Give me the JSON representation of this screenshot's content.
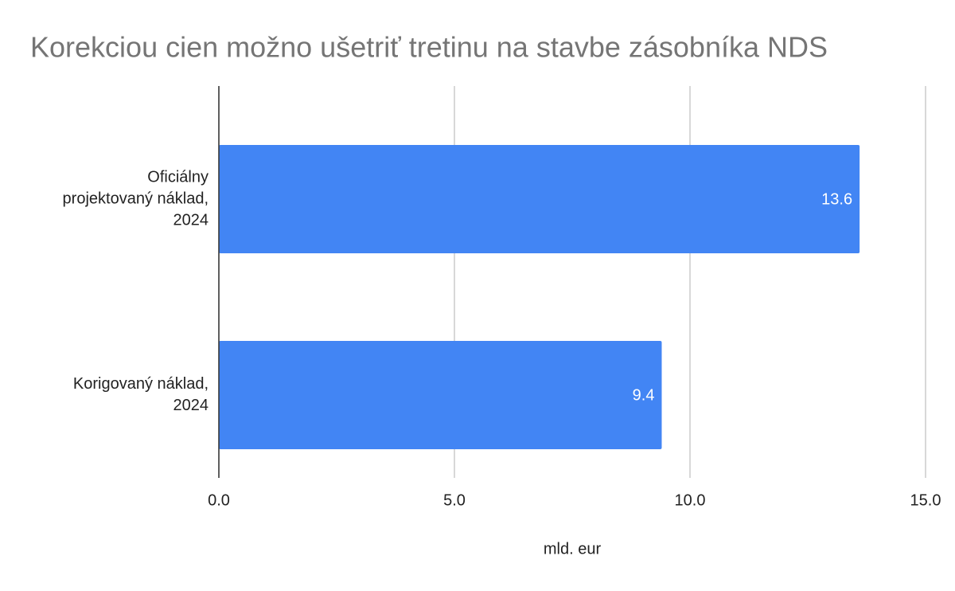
{
  "chart_data": {
    "type": "bar",
    "orientation": "horizontal",
    "title": "Korekciou cien možno ušetriť tretinu na stavbe zásobníka NDS",
    "x_label": "mld. eur",
    "categories": [
      "Oficiálny\nprojektovaný náklad,\n2024",
      "Korigovaný náklad,\n2024"
    ],
    "values": [
      13.6,
      9.4
    ],
    "color": "#4285f4",
    "xlim": [
      0,
      15
    ],
    "xticks": [
      {
        "value": 0,
        "label": "0.0"
      },
      {
        "value": 5,
        "label": "5.0"
      },
      {
        "value": 10,
        "label": "10.0"
      },
      {
        "value": 15,
        "label": "15.0"
      }
    ],
    "grid": true
  }
}
